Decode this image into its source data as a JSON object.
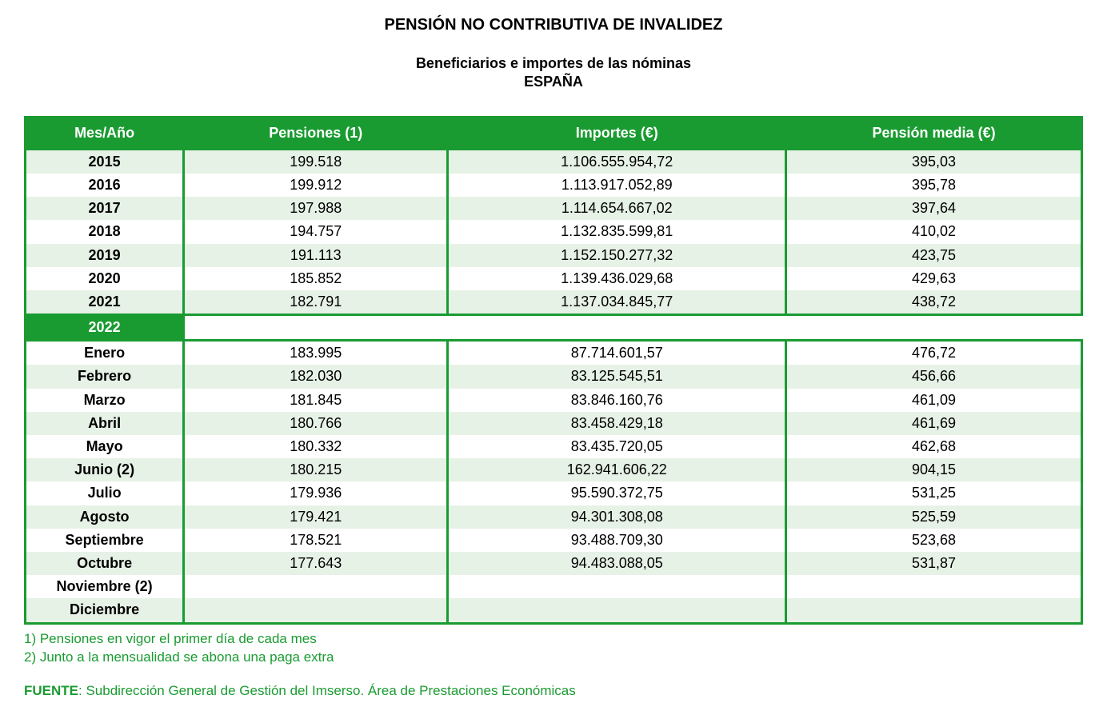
{
  "colors": {
    "header_bg": "#1a9b31",
    "header_fg": "#ffffff",
    "stripe_even": "#e6f2e6",
    "stripe_odd": "#ffffff",
    "border": "#1a9b31",
    "footnote": "#1a9b31",
    "text": "#000000"
  },
  "layout": {
    "col_widths_pct": [
      15,
      25,
      32,
      28
    ],
    "title_fontsize": 20,
    "subtitle_fontsize": 18,
    "header_fontsize": 18,
    "cell_fontsize": 18,
    "footnote_fontsize": 17
  },
  "titles": {
    "main": "PENSIÓN NO CONTRIBUTIVA DE INVALIDEZ",
    "sub1": "Beneficiarios e importes de las nóminas",
    "sub2": "ESPAÑA"
  },
  "columns": {
    "c1": "Mes/Año",
    "c2": "Pensiones (1)",
    "c3": "Importes (€)",
    "c4": "Pensión media (€)"
  },
  "annual_rows": [
    {
      "label": "2015",
      "pensiones": "199.518",
      "importes": "1.106.555.954,72",
      "media": "395,03"
    },
    {
      "label": "2016",
      "pensiones": "199.912",
      "importes": "1.113.917.052,89",
      "media": "395,78"
    },
    {
      "label": "2017",
      "pensiones": "197.988",
      "importes": "1.114.654.667,02",
      "media": "397,64"
    },
    {
      "label": "2018",
      "pensiones": "194.757",
      "importes": "1.132.835.599,81",
      "media": "410,02"
    },
    {
      "label": "2019",
      "pensiones": "191.113",
      "importes": "1.152.150.277,32",
      "media": "423,75"
    },
    {
      "label": "2020",
      "pensiones": "185.852",
      "importes": "1.139.436.029,68",
      "media": "429,63"
    },
    {
      "label": "2021",
      "pensiones": "182.791",
      "importes": "1.137.034.845,77",
      "media": "438,72"
    }
  ],
  "current_year_label": "2022",
  "monthly_rows": [
    {
      "label": "Enero",
      "pensiones": "183.995",
      "importes": "87.714.601,57",
      "media": "476,72"
    },
    {
      "label": "Febrero",
      "pensiones": "182.030",
      "importes": "83.125.545,51",
      "media": "456,66"
    },
    {
      "label": "Marzo",
      "pensiones": "181.845",
      "importes": "83.846.160,76",
      "media": "461,09"
    },
    {
      "label": "Abril",
      "pensiones": "180.766",
      "importes": "83.458.429,18",
      "media": "461,69"
    },
    {
      "label": "Mayo",
      "pensiones": "180.332",
      "importes": "83.435.720,05",
      "media": "462,68"
    },
    {
      "label": "Junio (2)",
      "pensiones": "180.215",
      "importes": "162.941.606,22",
      "media": "904,15"
    },
    {
      "label": "Julio",
      "pensiones": "179.936",
      "importes": "95.590.372,75",
      "media": "531,25"
    },
    {
      "label": "Agosto",
      "pensiones": "179.421",
      "importes": "94.301.308,08",
      "media": "525,59"
    },
    {
      "label": "Septiembre",
      "pensiones": "178.521",
      "importes": "93.488.709,30",
      "media": "523,68"
    },
    {
      "label": "Octubre",
      "pensiones": "177.643",
      "importes": "94.483.088,05",
      "media": "531,87"
    },
    {
      "label": "Noviembre (2)",
      "pensiones": "",
      "importes": "",
      "media": ""
    },
    {
      "label": "Diciembre",
      "pensiones": "",
      "importes": "",
      "media": ""
    }
  ],
  "footnotes": {
    "n1": "1) Pensiones en vigor el primer día de cada mes",
    "n2": "2) Junto a la mensualidad se abona una paga extra"
  },
  "source": {
    "label": "FUENTE",
    "text": ": Subdirección General de Gestión del Imserso. Área de Prestaciones Económicas"
  }
}
